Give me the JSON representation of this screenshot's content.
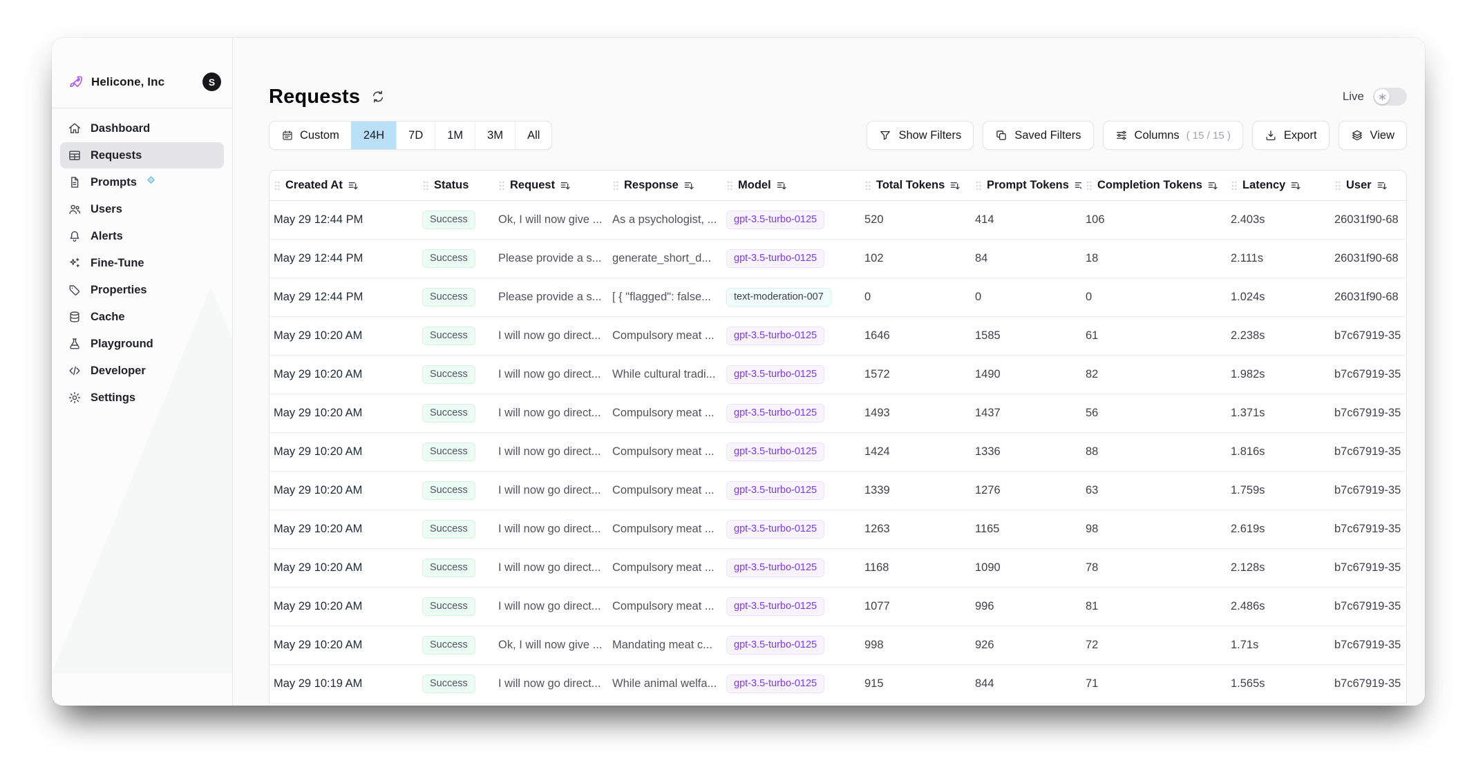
{
  "app": {
    "org_name": "Helicone, Inc",
    "avatar_letter": "S"
  },
  "sidebar": {
    "items": [
      {
        "label": "Dashboard",
        "icon": "home-icon",
        "active": false
      },
      {
        "label": "Requests",
        "icon": "table-icon",
        "active": true
      },
      {
        "label": "Prompts",
        "icon": "document-icon",
        "active": false,
        "badge": true
      },
      {
        "label": "Users",
        "icon": "users-icon",
        "active": false
      },
      {
        "label": "Alerts",
        "icon": "bell-icon",
        "active": false
      },
      {
        "label": "Fine-Tune",
        "icon": "sparkles-icon",
        "active": false
      },
      {
        "label": "Properties",
        "icon": "tag-icon",
        "active": false
      },
      {
        "label": "Cache",
        "icon": "database-icon",
        "active": false
      },
      {
        "label": "Playground",
        "icon": "beaker-icon",
        "active": false
      },
      {
        "label": "Developer",
        "icon": "code-icon",
        "active": false
      },
      {
        "label": "Settings",
        "icon": "gear-icon",
        "active": false
      }
    ]
  },
  "header": {
    "title": "Requests",
    "live_label": "Live"
  },
  "time_filter": {
    "custom_label": "Custom",
    "options": [
      "24H",
      "7D",
      "1M",
      "3M",
      "All"
    ],
    "selected": "24H"
  },
  "toolbar": {
    "show_filters_label": "Show Filters",
    "saved_filters_label": "Saved Filters",
    "columns_label": "Columns",
    "columns_count": "( 15 / 15 )",
    "export_label": "Export",
    "view_label": "View"
  },
  "table": {
    "columns": [
      {
        "key": "created_at",
        "label": "Created At",
        "sortable": true
      },
      {
        "key": "status",
        "label": "Status",
        "sortable": false
      },
      {
        "key": "request",
        "label": "Request",
        "sortable": true
      },
      {
        "key": "response",
        "label": "Response",
        "sortable": true
      },
      {
        "key": "model",
        "label": "Model",
        "sortable": true
      },
      {
        "key": "total_tokens",
        "label": "Total Tokens",
        "sortable": true
      },
      {
        "key": "prompt_tokens",
        "label": "Prompt Tokens",
        "sortable": true
      },
      {
        "key": "completion_tokens",
        "label": "Completion Tokens",
        "sortable": true
      },
      {
        "key": "latency",
        "label": "Latency",
        "sortable": true
      },
      {
        "key": "user",
        "label": "User",
        "sortable": true
      }
    ],
    "rows": [
      {
        "created_at": "May 29 12:44 PM",
        "status": "Success",
        "request": "Ok, I will now give ...",
        "response": "As a psychologist, ...",
        "model": "gpt-3.5-turbo-0125",
        "model_color": "purple",
        "total_tokens": "520",
        "prompt_tokens": "414",
        "completion_tokens": "106",
        "latency": "2.403s",
        "user": "26031f90-68"
      },
      {
        "created_at": "May 29 12:44 PM",
        "status": "Success",
        "request": "Please provide a s...",
        "response": "generate_short_d...",
        "model": "gpt-3.5-turbo-0125",
        "model_color": "purple",
        "total_tokens": "102",
        "prompt_tokens": "84",
        "completion_tokens": "18",
        "latency": "2.111s",
        "user": "26031f90-68"
      },
      {
        "created_at": "May 29 12:44 PM",
        "status": "Success",
        "request": "Please provide a s...",
        "response": "[ { \"flagged\": false...",
        "model": "text-moderation-007",
        "model_color": "teal",
        "total_tokens": "0",
        "prompt_tokens": "0",
        "completion_tokens": "0",
        "latency": "1.024s",
        "user": "26031f90-68"
      },
      {
        "created_at": "May 29 10:20 AM",
        "status": "Success",
        "request": "I will now go direct...",
        "response": "Compulsory meat ...",
        "model": "gpt-3.5-turbo-0125",
        "model_color": "purple",
        "total_tokens": "1646",
        "prompt_tokens": "1585",
        "completion_tokens": "61",
        "latency": "2.238s",
        "user": "b7c67919-35"
      },
      {
        "created_at": "May 29 10:20 AM",
        "status": "Success",
        "request": "I will now go direct...",
        "response": "While cultural tradi...",
        "model": "gpt-3.5-turbo-0125",
        "model_color": "purple",
        "total_tokens": "1572",
        "prompt_tokens": "1490",
        "completion_tokens": "82",
        "latency": "1.982s",
        "user": "b7c67919-35"
      },
      {
        "created_at": "May 29 10:20 AM",
        "status": "Success",
        "request": "I will now go direct...",
        "response": "Compulsory meat ...",
        "model": "gpt-3.5-turbo-0125",
        "model_color": "purple",
        "total_tokens": "1493",
        "prompt_tokens": "1437",
        "completion_tokens": "56",
        "latency": "1.371s",
        "user": "b7c67919-35"
      },
      {
        "created_at": "May 29 10:20 AM",
        "status": "Success",
        "request": "I will now go direct...",
        "response": "Compulsory meat ...",
        "model": "gpt-3.5-turbo-0125",
        "model_color": "purple",
        "total_tokens": "1424",
        "prompt_tokens": "1336",
        "completion_tokens": "88",
        "latency": "1.816s",
        "user": "b7c67919-35"
      },
      {
        "created_at": "May 29 10:20 AM",
        "status": "Success",
        "request": "I will now go direct...",
        "response": "Compulsory meat ...",
        "model": "gpt-3.5-turbo-0125",
        "model_color": "purple",
        "total_tokens": "1339",
        "prompt_tokens": "1276",
        "completion_tokens": "63",
        "latency": "1.759s",
        "user": "b7c67919-35"
      },
      {
        "created_at": "May 29 10:20 AM",
        "status": "Success",
        "request": "I will now go direct...",
        "response": "Compulsory meat ...",
        "model": "gpt-3.5-turbo-0125",
        "model_color": "purple",
        "total_tokens": "1263",
        "prompt_tokens": "1165",
        "completion_tokens": "98",
        "latency": "2.619s",
        "user": "b7c67919-35"
      },
      {
        "created_at": "May 29 10:20 AM",
        "status": "Success",
        "request": "I will now go direct...",
        "response": "Compulsory meat ...",
        "model": "gpt-3.5-turbo-0125",
        "model_color": "purple",
        "total_tokens": "1168",
        "prompt_tokens": "1090",
        "completion_tokens": "78",
        "latency": "2.128s",
        "user": "b7c67919-35"
      },
      {
        "created_at": "May 29 10:20 AM",
        "status": "Success",
        "request": "I will now go direct...",
        "response": "Compulsory meat ...",
        "model": "gpt-3.5-turbo-0125",
        "model_color": "purple",
        "total_tokens": "1077",
        "prompt_tokens": "996",
        "completion_tokens": "81",
        "latency": "2.486s",
        "user": "b7c67919-35"
      },
      {
        "created_at": "May 29 10:20 AM",
        "status": "Success",
        "request": "Ok, I will now give ...",
        "response": "Mandating meat c...",
        "model": "gpt-3.5-turbo-0125",
        "model_color": "purple",
        "total_tokens": "998",
        "prompt_tokens": "926",
        "completion_tokens": "72",
        "latency": "1.71s",
        "user": "b7c67919-35"
      },
      {
        "created_at": "May 29 10:19 AM",
        "status": "Success",
        "request": "I will now go direct...",
        "response": "While animal welfa...",
        "model": "gpt-3.5-turbo-0125",
        "model_color": "purple",
        "total_tokens": "915",
        "prompt_tokens": "844",
        "completion_tokens": "71",
        "latency": "1.565s",
        "user": "b7c67919-35"
      }
    ]
  },
  "colors": {
    "brand_purple": "#a855f7",
    "selected_tab_bg": "#b9e0f6",
    "active_nav_bg": "#e5e5e8",
    "success_badge_bg": "#ecfdf5",
    "success_badge_text": "#52525b",
    "model_purple_text": "#7c3aed",
    "model_purple_bg": "#f7f3ff",
    "model_teal_bg": "#f0fdfa",
    "avatar_bg": "#18181b"
  }
}
